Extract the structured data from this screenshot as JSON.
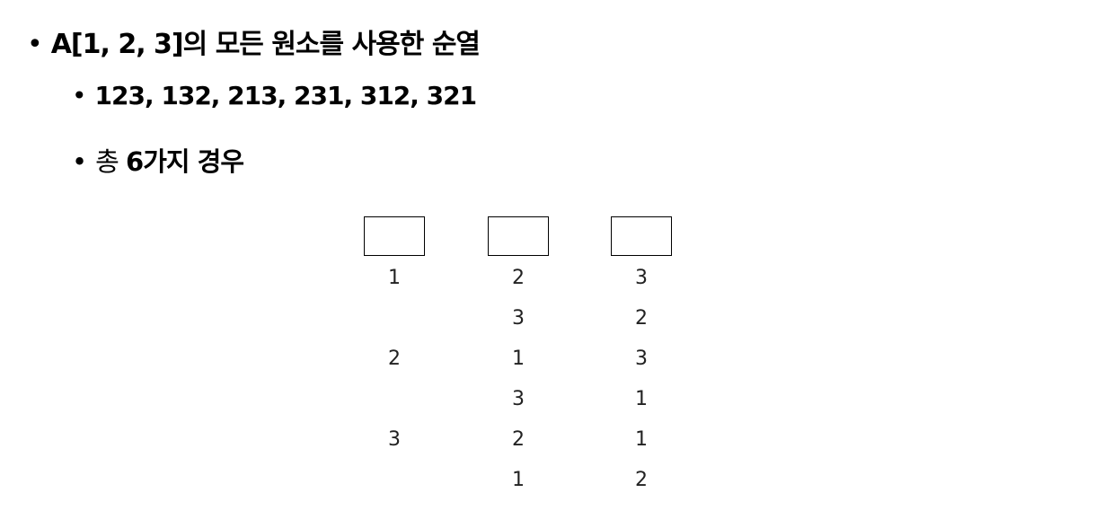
{
  "bullets": {
    "title": "A[1, 2, 3]의 모든 원소를 사용한 순열",
    "permutations": "123, 132, 213, 231, 312, 321",
    "total_prefix": "총 ",
    "total_num": "6",
    "total_suffix": "가지 경우",
    "dot": "•"
  },
  "table": {
    "columns": [
      [
        "1",
        "",
        "2",
        "",
        "3",
        ""
      ],
      [
        "2",
        "3",
        "1",
        "3",
        "2",
        "1"
      ],
      [
        "3",
        "2",
        "3",
        "1",
        "1",
        "2"
      ]
    ]
  }
}
